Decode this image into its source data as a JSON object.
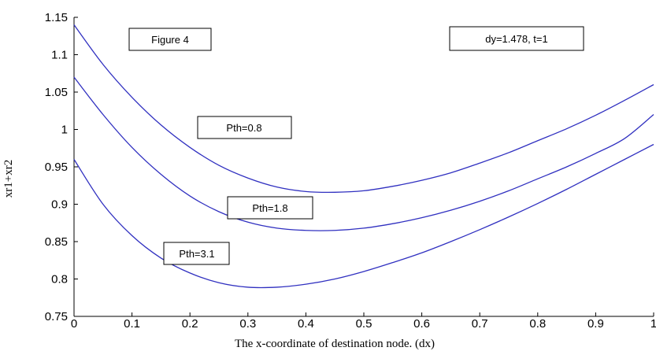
{
  "chart_data": {
    "type": "line",
    "title": "",
    "xlabel": "The x-coordinate of destination node. (dx)",
    "ylabel": "xr1+xr2",
    "xlim": [
      0,
      1
    ],
    "ylim": [
      0.75,
      1.15
    ],
    "x_ticks": [
      "0",
      "0.1",
      "0.2",
      "0.3",
      "0.4",
      "0.5",
      "0.6",
      "0.7",
      "0.8",
      "0.9",
      "1"
    ],
    "y_ticks": [
      "0.75",
      "0.8",
      "0.85",
      "0.9",
      "0.95",
      "1",
      "1.05",
      "1.1",
      "1.15"
    ],
    "grid": false,
    "line_color": "#3030c0",
    "series": [
      {
        "label": "Pth=0.8",
        "x": [
          0,
          0.05,
          0.1,
          0.15,
          0.2,
          0.25,
          0.3,
          0.35,
          0.4,
          0.45,
          0.5,
          0.55,
          0.6,
          0.65,
          0.7,
          0.75,
          0.8,
          0.85,
          0.9,
          0.95,
          1.0
        ],
        "y": [
          1.14,
          1.087,
          1.043,
          1.006,
          0.976,
          0.952,
          0.935,
          0.923,
          0.917,
          0.916,
          0.918,
          0.924,
          0.932,
          0.942,
          0.955,
          0.969,
          0.985,
          1.001,
          1.019,
          1.039,
          1.06
        ]
      },
      {
        "label": "Pth=1.8",
        "x": [
          0,
          0.05,
          0.1,
          0.15,
          0.2,
          0.25,
          0.3,
          0.35,
          0.4,
          0.45,
          0.5,
          0.55,
          0.6,
          0.65,
          0.7,
          0.75,
          0.8,
          0.85,
          0.9,
          0.95,
          1.0
        ],
        "y": [
          1.07,
          1.02,
          0.976,
          0.94,
          0.911,
          0.89,
          0.876,
          0.868,
          0.865,
          0.865,
          0.868,
          0.874,
          0.882,
          0.892,
          0.904,
          0.918,
          0.934,
          0.95,
          0.968,
          0.988,
          1.02
        ]
      },
      {
        "label": "Pth=3.1",
        "x": [
          0,
          0.05,
          0.1,
          0.15,
          0.2,
          0.25,
          0.3,
          0.35,
          0.4,
          0.45,
          0.5,
          0.55,
          0.6,
          0.65,
          0.7,
          0.75,
          0.8,
          0.85,
          0.9,
          0.95,
          1.0
        ],
        "y": [
          0.96,
          0.9,
          0.858,
          0.828,
          0.808,
          0.795,
          0.789,
          0.789,
          0.793,
          0.8,
          0.81,
          0.822,
          0.835,
          0.85,
          0.866,
          0.883,
          0.901,
          0.92,
          0.94,
          0.96,
          0.98
        ]
      }
    ],
    "annotations": [
      "Figure 4",
      "dy=1.478, t=1"
    ]
  }
}
